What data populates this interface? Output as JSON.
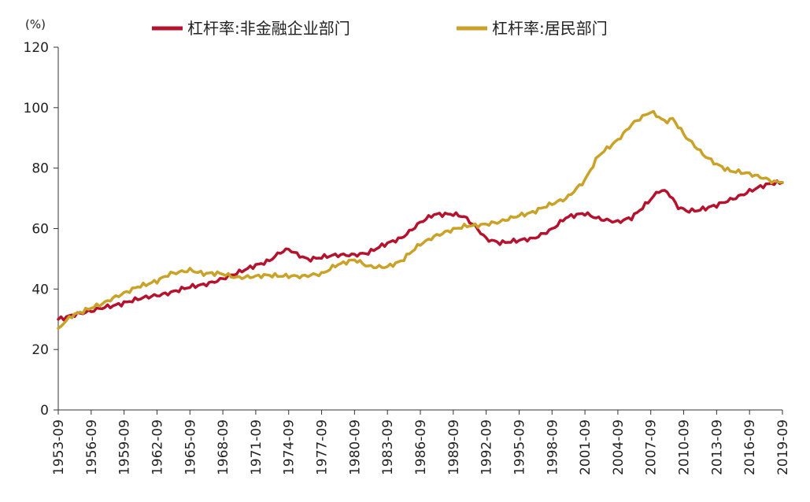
{
  "chart_data": {
    "type": "line",
    "unit_label": "(%)",
    "ylim": [
      0,
      120
    ],
    "y_ticks": [
      "0",
      "20",
      "40",
      "60",
      "80",
      "100",
      "120"
    ],
    "x_ticks": [
      "1953-09",
      "1956-09",
      "1959-09",
      "1962-09",
      "1965-09",
      "1968-09",
      "1971-09",
      "1974-09",
      "1977-09",
      "1980-09",
      "1983-09",
      "1986-09",
      "1989-09",
      "1992-09",
      "1995-09",
      "1998-09",
      "2001-09",
      "2004-09",
      "2007-09",
      "2010-09",
      "2013-09",
      "2016-09",
      "2019-09"
    ],
    "grid": false,
    "legend_position": "top",
    "x_range": [
      1953.75,
      2019.75
    ],
    "series": [
      {
        "name": "杠杆率:非金融企业部门",
        "color": "#b5122e",
        "points": [
          [
            1953.75,
            30
          ],
          [
            1955,
            31.5
          ],
          [
            1956.75,
            32.5
          ],
          [
            1958,
            34
          ],
          [
            1959.75,
            35.5
          ],
          [
            1961,
            36.5
          ],
          [
            1962.75,
            38
          ],
          [
            1964,
            39
          ],
          [
            1965.75,
            40.5
          ],
          [
            1967,
            41.5
          ],
          [
            1968.75,
            43.5
          ],
          [
            1970,
            45
          ],
          [
            1971.75,
            48
          ],
          [
            1973,
            49.5
          ],
          [
            1974,
            52
          ],
          [
            1974.75,
            53
          ],
          [
            1975.5,
            51.5
          ],
          [
            1976.5,
            50
          ],
          [
            1977.75,
            50.5
          ],
          [
            1979,
            51
          ],
          [
            1980.75,
            51.5
          ],
          [
            1982,
            52
          ],
          [
            1983.75,
            55
          ],
          [
            1985,
            57
          ],
          [
            1986.75,
            62
          ],
          [
            1988,
            64.5
          ],
          [
            1989.75,
            65
          ],
          [
            1990.75,
            64
          ],
          [
            1991.75,
            60.5
          ],
          [
            1992.75,
            56.5
          ],
          [
            1994,
            55.5
          ],
          [
            1995.75,
            56
          ],
          [
            1997,
            56.5
          ],
          [
            1998.75,
            60
          ],
          [
            2000,
            63.5
          ],
          [
            2001.75,
            65
          ],
          [
            2003,
            63.5
          ],
          [
            2004.75,
            62
          ],
          [
            2006,
            63.5
          ],
          [
            2007.5,
            69
          ],
          [
            2008.5,
            72.5
          ],
          [
            2009.25,
            72
          ],
          [
            2010.25,
            67
          ],
          [
            2011,
            66
          ],
          [
            2012,
            66.2
          ],
          [
            2013.75,
            67.5
          ],
          [
            2015,
            69.5
          ],
          [
            2016.75,
            72.5
          ],
          [
            2018,
            74
          ],
          [
            2019,
            75
          ],
          [
            2019.75,
            75.2
          ]
        ]
      },
      {
        "name": "杠杆率:居民部门",
        "color": "#c9a227",
        "points": [
          [
            1953.75,
            27
          ],
          [
            1955,
            31
          ],
          [
            1956.75,
            34
          ],
          [
            1958,
            35.5
          ],
          [
            1959.75,
            38.5
          ],
          [
            1961,
            41
          ],
          [
            1962.75,
            42.5
          ],
          [
            1964,
            45
          ],
          [
            1965.75,
            46.5
          ],
          [
            1967,
            45
          ],
          [
            1968.75,
            45
          ],
          [
            1970,
            44
          ],
          [
            1971.75,
            44
          ],
          [
            1973,
            44.5
          ],
          [
            1974.75,
            44.5
          ],
          [
            1976,
            44
          ],
          [
            1977.75,
            45
          ],
          [
            1979,
            48
          ],
          [
            1980.75,
            49.5
          ],
          [
            1982,
            47.5
          ],
          [
            1983.75,
            47.5
          ],
          [
            1985,
            49
          ],
          [
            1986.75,
            55
          ],
          [
            1988,
            57.5
          ],
          [
            1989.75,
            59.5
          ],
          [
            1991,
            61
          ],
          [
            1992.75,
            61.5
          ],
          [
            1994,
            62
          ],
          [
            1995.75,
            64.5
          ],
          [
            1997,
            65.5
          ],
          [
            1998.75,
            68
          ],
          [
            2000,
            70
          ],
          [
            2001.75,
            76
          ],
          [
            2003,
            84
          ],
          [
            2004.75,
            89.5
          ],
          [
            2006,
            94.5
          ],
          [
            2007.75,
            98.5
          ],
          [
            2008.5,
            97
          ],
          [
            2009,
            95.5
          ],
          [
            2009.75,
            96.5
          ],
          [
            2011,
            90
          ],
          [
            2012.5,
            84.5
          ],
          [
            2013.75,
            81.5
          ],
          [
            2015,
            79
          ],
          [
            2016.75,
            78
          ],
          [
            2018,
            77
          ],
          [
            2019,
            75.5
          ],
          [
            2019.75,
            75.3
          ]
        ]
      }
    ]
  }
}
